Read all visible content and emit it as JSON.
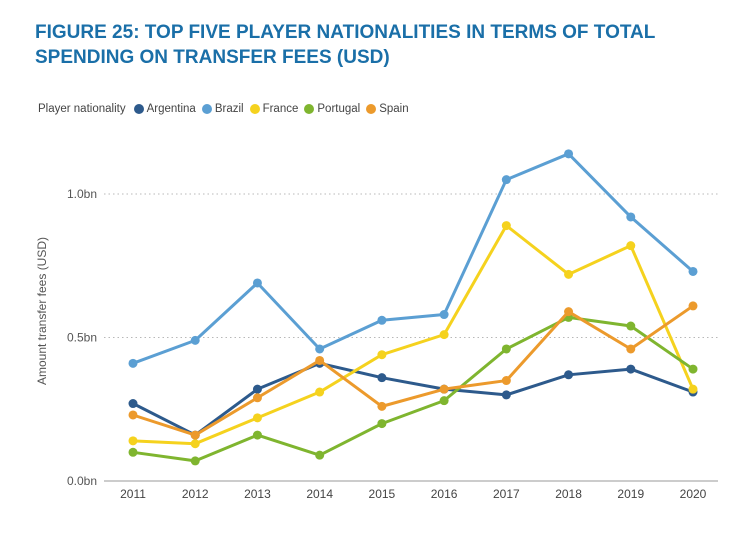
{
  "title_line1": "FIGURE 25: TOP FIVE PLAYER NATIONALITIES IN TERMS OF TOTAL",
  "title_line2": "SPENDING ON TRANSFER FEES (USD)",
  "legend": {
    "label": "Player nationality",
    "items": [
      {
        "name": "Argentina",
        "color": "#2d5a8c"
      },
      {
        "name": "Brazil",
        "color": "#5b9fd3"
      },
      {
        "name": "France",
        "color": "#f5d21e"
      },
      {
        "name": "Portugal",
        "color": "#7fb52f"
      },
      {
        "name": "Spain",
        "color": "#ec9a2c"
      }
    ]
  },
  "chart_data": {
    "type": "line",
    "title": "FIGURE 25: TOP FIVE PLAYER NATIONALITIES IN TERMS OF TOTAL SPENDING ON TRANSFER FEES (USD)",
    "xlabel": "",
    "ylabel": "Amount transfer fees (USD)",
    "categories": [
      "2011",
      "2012",
      "2013",
      "2014",
      "2015",
      "2016",
      "2017",
      "2018",
      "2019",
      "2020"
    ],
    "ylim": [
      0,
      1.15
    ],
    "yticks": [
      {
        "value": 0.0,
        "label": "0.0bn"
      },
      {
        "value": 0.5,
        "label": "0.5bn"
      },
      {
        "value": 1.0,
        "label": "1.0bn"
      }
    ],
    "grid": true,
    "legend_position": "top",
    "series": [
      {
        "name": "Brazil",
        "color": "#5b9fd3",
        "values": [
          0.41,
          0.49,
          0.69,
          0.46,
          0.56,
          0.58,
          1.05,
          1.14,
          0.92,
          0.73
        ]
      },
      {
        "name": "Argentina",
        "color": "#2d5a8c",
        "values": [
          0.27,
          0.16,
          0.32,
          0.41,
          0.36,
          0.32,
          0.3,
          0.37,
          0.39,
          0.31
        ]
      },
      {
        "name": "France",
        "color": "#f5d21e",
        "values": [
          0.14,
          0.13,
          0.22,
          0.31,
          0.44,
          0.51,
          0.89,
          0.72,
          0.82,
          0.32
        ]
      },
      {
        "name": "Portugal",
        "color": "#7fb52f",
        "values": [
          0.1,
          0.07,
          0.16,
          0.09,
          0.2,
          0.28,
          0.46,
          0.57,
          0.54,
          0.39
        ]
      },
      {
        "name": "Spain",
        "color": "#ec9a2c",
        "values": [
          0.23,
          0.16,
          0.29,
          0.42,
          0.26,
          0.32,
          0.35,
          0.59,
          0.46,
          0.61
        ]
      }
    ]
  }
}
